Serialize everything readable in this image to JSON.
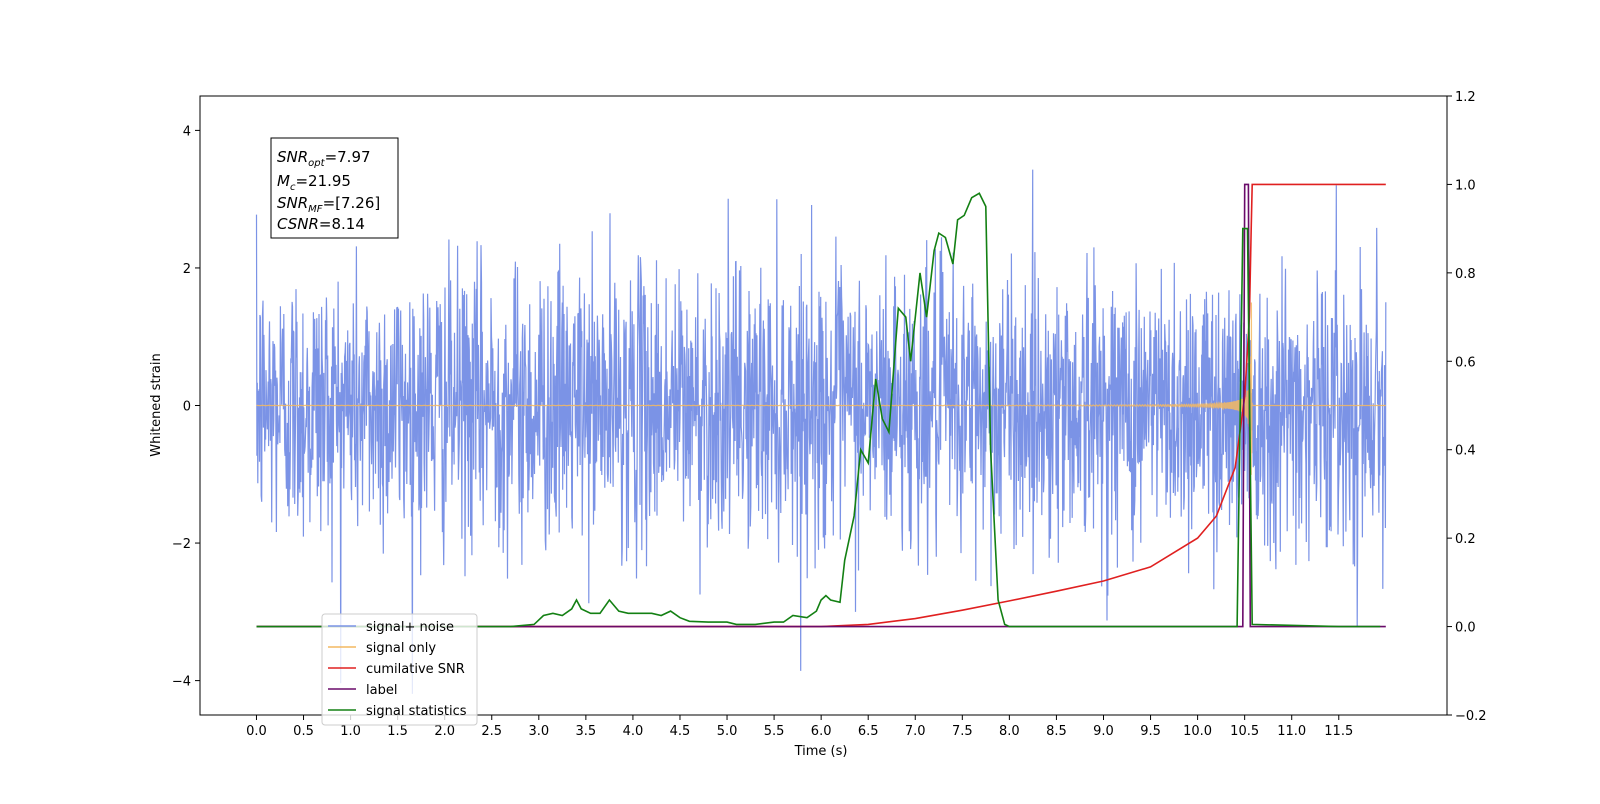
{
  "chart_data": {
    "type": "line",
    "xlabel": "Time (s)",
    "ylabel_left": "Whitened strain",
    "ylabel_right": "",
    "xlim": [
      -0.6,
      12.65
    ],
    "ylim_left": [
      -4.5,
      4.5
    ],
    "ylim_right": [
      -0.2,
      1.2
    ],
    "x_ticks": [
      "0.0",
      "0.5",
      "1.0",
      "1.5",
      "2.0",
      "2.5",
      "3.0",
      "3.5",
      "4.0",
      "4.5",
      "5.0",
      "5.5",
      "6.0",
      "6.5",
      "7.0",
      "7.5",
      "8.0",
      "8.5",
      "9.0",
      "9.5",
      "10.0",
      "10.5",
      "11.0",
      "11.5"
    ],
    "y_ticks_left": [
      "−4",
      "−2",
      "0",
      "2",
      "4"
    ],
    "y_ticks_right": [
      "−0.2",
      "0.0",
      "0.2",
      "0.4",
      "0.6",
      "0.8",
      "1.0",
      "1.2"
    ],
    "grid": false,
    "legend_location": "bottom-left",
    "annotation": {
      "line1": {
        "base": "SNR",
        "sub": "opt",
        "rest": "=7.97"
      },
      "line2": {
        "base": "M",
        "sub": "c",
        "rest": "=21.95"
      },
      "line3": {
        "base": "SNR",
        "sub": "MF",
        "rest": "=[7.26]"
      },
      "line4": {
        "base": "CSNR",
        "sub": "",
        "rest": "=8.14"
      }
    },
    "series": [
      {
        "name": "signal+ noise",
        "axis": "left",
        "color": "#7b93e6",
        "x_range": [
          0.0,
          12.0
        ],
        "noise_std": 1.0
      },
      {
        "name": "signal only",
        "axis": "left",
        "color": "#f4b860",
        "x_range": [
          0.0,
          10.58
        ],
        "merger_time": 10.58
      },
      {
        "name": "cumilative SNR",
        "axis": "right",
        "color": "#e02020",
        "points": [
          [
            0.0,
            0.0
          ],
          [
            6.0,
            0.0
          ],
          [
            6.5,
            0.005
          ],
          [
            7.0,
            0.018
          ],
          [
            7.5,
            0.037
          ],
          [
            8.0,
            0.058
          ],
          [
            8.5,
            0.08
          ],
          [
            9.0,
            0.103
          ],
          [
            9.5,
            0.135
          ],
          [
            10.0,
            0.2
          ],
          [
            10.2,
            0.25
          ],
          [
            10.4,
            0.36
          ],
          [
            10.5,
            0.52
          ],
          [
            10.55,
            0.7
          ],
          [
            10.57,
            0.9
          ],
          [
            10.58,
            1.0
          ],
          [
            12.0,
            1.0
          ]
        ]
      },
      {
        "name": "label",
        "axis": "right",
        "color": "#6a0a6a",
        "points": [
          [
            0.0,
            0.0
          ],
          [
            10.48,
            0.0
          ],
          [
            10.5,
            1.0
          ],
          [
            10.54,
            1.0
          ],
          [
            10.56,
            0.0
          ],
          [
            12.0,
            0.0
          ]
        ]
      },
      {
        "name": "signal statistics",
        "axis": "right",
        "color": "#138013",
        "points": [
          [
            0.0,
            0.0
          ],
          [
            0.5,
            0.0
          ],
          [
            1.0,
            0.0
          ],
          [
            1.5,
            0.0
          ],
          [
            2.0,
            0.0
          ],
          [
            2.5,
            0.0
          ],
          [
            2.7,
            0.0
          ],
          [
            2.95,
            0.005
          ],
          [
            3.05,
            0.025
          ],
          [
            3.15,
            0.03
          ],
          [
            3.25,
            0.025
          ],
          [
            3.35,
            0.04
          ],
          [
            3.4,
            0.06
          ],
          [
            3.45,
            0.04
          ],
          [
            3.55,
            0.03
          ],
          [
            3.65,
            0.03
          ],
          [
            3.75,
            0.06
          ],
          [
            3.85,
            0.035
          ],
          [
            3.95,
            0.03
          ],
          [
            4.05,
            0.03
          ],
          [
            4.2,
            0.03
          ],
          [
            4.3,
            0.025
          ],
          [
            4.4,
            0.035
          ],
          [
            4.5,
            0.02
          ],
          [
            4.6,
            0.012
          ],
          [
            4.8,
            0.01
          ],
          [
            5.0,
            0.01
          ],
          [
            5.1,
            0.005
          ],
          [
            5.3,
            0.005
          ],
          [
            5.5,
            0.01
          ],
          [
            5.6,
            0.01
          ],
          [
            5.7,
            0.025
          ],
          [
            5.85,
            0.02
          ],
          [
            5.95,
            0.035
          ],
          [
            6.0,
            0.06
          ],
          [
            6.05,
            0.07
          ],
          [
            6.1,
            0.06
          ],
          [
            6.2,
            0.055
          ],
          [
            6.25,
            0.15
          ],
          [
            6.35,
            0.25
          ],
          [
            6.42,
            0.4
          ],
          [
            6.5,
            0.37
          ],
          [
            6.58,
            0.56
          ],
          [
            6.65,
            0.47
          ],
          [
            6.72,
            0.44
          ],
          [
            6.82,
            0.72
          ],
          [
            6.9,
            0.7
          ],
          [
            6.95,
            0.6
          ],
          [
            7.05,
            0.8
          ],
          [
            7.12,
            0.7
          ],
          [
            7.2,
            0.85
          ],
          [
            7.25,
            0.89
          ],
          [
            7.32,
            0.88
          ],
          [
            7.4,
            0.82
          ],
          [
            7.45,
            0.92
          ],
          [
            7.52,
            0.93
          ],
          [
            7.6,
            0.97
          ],
          [
            7.68,
            0.98
          ],
          [
            7.75,
            0.95
          ],
          [
            7.8,
            0.4
          ],
          [
            7.88,
            0.06
          ],
          [
            7.95,
            0.005
          ],
          [
            8.0,
            0.0
          ],
          [
            10.42,
            0.0
          ],
          [
            10.48,
            0.9
          ],
          [
            10.53,
            0.9
          ],
          [
            10.58,
            0.005
          ],
          [
            11.5,
            0.0
          ],
          [
            11.94,
            0.0
          ]
        ]
      }
    ]
  }
}
